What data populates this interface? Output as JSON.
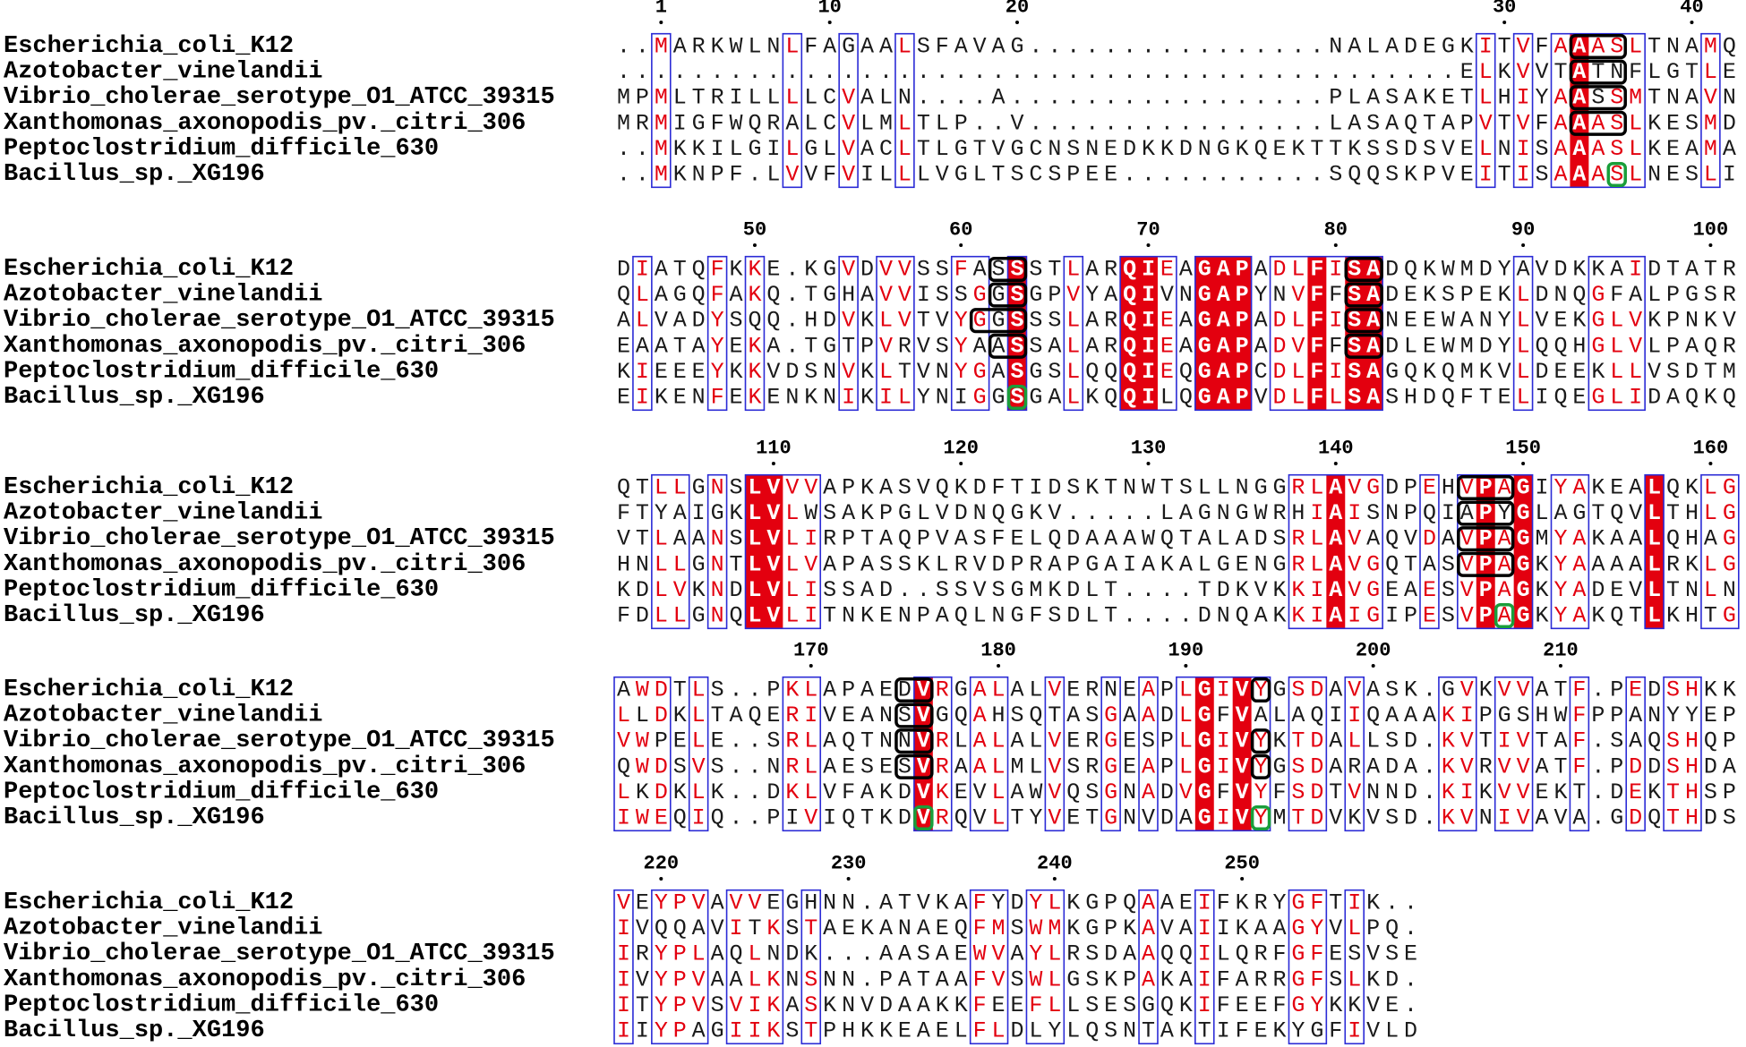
{
  "names": [
    "Escherichia_coli_K12",
    "Azotobacter_vinelandii",
    "Vibrio_cholerae_serotype_O1_ATCC_39315",
    "Xanthomonas_axonopodis_pv._citri_306",
    "Peptoclostridium_difficile_630",
    "Bacillus_sp._XG196"
  ],
  "blocks": [
    {
      "numbers": [
        1,
        10,
        20,
        30,
        40
      ],
      "rows": [
        "..MARKWLNLFAGAALSFAVAG................NALADEGKITVFAAASLTNAMQ",
        ".............................................ELKVVTATNFLGTLE",
        "MPMLTRILLLLCVALN....A.................PLASAKETLHIYAASSMTNAVN",
        "MRMIGFWQRALCVLMLTLP..V................LASAQTAPVTVFAAASLKESMD",
        "..MKKILGILGLVACLTLGTVGCNSNEDKKDNGKQEKTTKSSDSVELNISAAASLKEAMA",
        "..MKNPF.LVVFVILLLVGLTSCSPEE...........SQQSKPVEITISAAASLNESLI"
      ]
    },
    {
      "numbers": [
        50,
        60,
        70,
        80,
        90,
        100
      ],
      "rows": [
        "DIATQFKKE.KGVDVVSSFASSSTLARQIEAGAPADLFISADQKWMDYAVDKKAIDTATR",
        "QLAGQFAKQ.TGHAVVISSGGSGPVYAQIVNGAPYNVFFSADEKSPEKLDNQGFALPGSR",
        "ALVADYSQQ.HDVKLVTVYGGSSSLARQIEAGAPADLFISANEEWANYLVEKGLVKPNKV",
        "EAATAYEKA.TGTPVRVSYAASSALARQIEAGAPADVFFSADLEWMDYLQQHGLVLPAQR",
        "KIEEEYKKVDSNVKLTVNYGASGSLQQQIEQGAPCDLFISAGQKQMKVLDEEKLLVSDTM",
        "EIKENFEKENKNIKILYNIGGSGALKQQILQGAPVDLFLSASHDQFTELIQEGLIDAQKQ"
      ]
    },
    {
      "numbers": [
        110,
        120,
        130,
        140,
        150,
        160
      ],
      "rows": [
        "QTLLGNSLVVVAPKASVQKDFTIDSKTNWTSLLNGGRLAVGDPEHVPAGIYAKEALQKLG",
        "FTYAIGKLVLWSAKPGLVDNQGKV.....LAGNGWRHIAISNPQIAPYGLAGTQVLTHLG",
        "VTLAANSLVLIRPTAQPVASFELQDAAAWQTALADSRLAVAQVDAVPAGMYAKAALQHAG",
        "HNLLGNTLVLVAPASSKLRVDPRAPGAIAKALGENGRLAVGQTASVPAGKYAAAALRKLG",
        "KDLVKNDLVLISSAD..SSVSGMKDLT....TDKVKKIAVGEAESVPAGKYADEVLTNLN",
        "FDLLGNQLVLITNKENPAQLNGFSDLT....DNQAKKIAIGIPESVPAGKYAKQTLKHTG"
      ]
    },
    {
      "numbers": [
        170,
        180,
        190,
        200,
        210
      ],
      "rows": [
        "AWDTLS..PKLAPAEDVRGALALVERNEAPLGIVYGSDAVASK.GVKVVATF.PEDSHKK",
        "LLDKLTAQERIVEANSVGQAHSQTASGAADLGFVALAQIIQAAAKIPGSHWFPPANYYEP",
        "VWPELE..SRLAQTNNVRLALALVERGESPLGIVYKTDALLSD.KVTIVTAF.SAQSHQP",
        "QWDSVS..NRLAESESVRAALMLVSRGEAPLGIVYGSDARADA.KVRVVATF.PDDSHDA",
        "LKDKLK..DKLVFAKDVKEVLAWVQSGNADVGFVYFSDTVNND.KIKVVEKT.DEKTHSP",
        "IWEQIQ..PIVIQTKDVRQVLTYVETGNVDAGIVYMTDVKVSD.KVNIVAVA.GDQTHDS"
      ]
    },
    {
      "numbers": [
        220,
        230,
        240,
        250
      ],
      "rows": [
        "VEYPVAVVEGHNN.ATVKAFYDYLKGPQAAEIFKRYGFTIK..",
        "IVQQAVITKSTAEKANAEQFMSWMKGPKAVAIIKAAGYVLPQ.",
        "IRYPLAQLNDK...AASAEWVAYLRSDAAQQILQRFGFESVSE",
        "IVYPVAALKNSNN.PATAAFVSWLGSKPAKAIFARRGFSLKD.",
        "ITYPVSVIKASKNVDAAKKFEEFLLSESGQKIFEEFGYKKVE.",
        "IIYPAGIIKSTPHKKEAELFLDLYLQSNTAKTIFEKYGFIVLD"
      ]
    }
  ]
}
